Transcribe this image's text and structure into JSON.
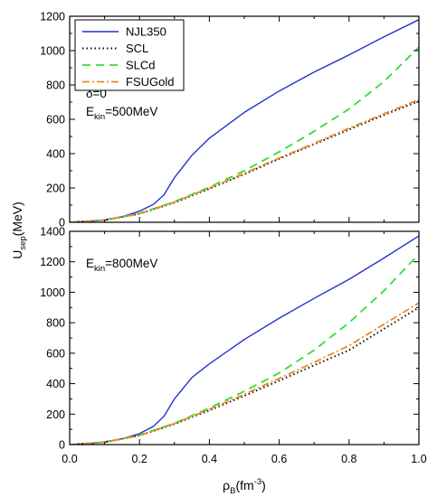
{
  "chart_data": {
    "type": "line",
    "x_label": {
      "main": "ρ",
      "sub": "B",
      "unit_pre": "(fm",
      "unit_sup": "-3",
      "unit_post": ")"
    },
    "y_label": {
      "main": "U",
      "sub": "sep",
      "unit": "(MeV)"
    },
    "x_ticks": [
      "0.0",
      "0.2",
      "0.4",
      "0.6",
      "0.8",
      "1.0"
    ],
    "xlim": [
      0,
      1.0
    ],
    "colors": {
      "NJL350": "#2233cc",
      "SCL": "#111111",
      "SLCd": "#33dd33",
      "FSUGold": "#ee8822"
    },
    "legend": [
      "NJL350",
      "SCL",
      "SLCd",
      "FSUGold"
    ],
    "panels": [
      {
        "ylim": [
          0,
          1200
        ],
        "y_ticks": [
          "0",
          "200",
          "400",
          "600",
          "800",
          "1000",
          "1200"
        ],
        "annotations": [
          {
            "main": "δ=0"
          },
          {
            "main": "E",
            "sub": "kin",
            "rest": "=500MeV"
          }
        ],
        "series": [
          {
            "name": "NJL350",
            "x": [
              0,
              0.05,
              0.1,
              0.15,
              0.2,
              0.24,
              0.27,
              0.3,
              0.35,
              0.4,
              0.5,
              0.6,
              0.7,
              0.8,
              0.9,
              1.0
            ],
            "y": [
              0,
              4,
              14,
              32,
              65,
              105,
              160,
              260,
              390,
              490,
              640,
              765,
              875,
              975,
              1080,
              1180
            ]
          },
          {
            "name": "SCL",
            "x": [
              0,
              0.1,
              0.2,
              0.3,
              0.4,
              0.5,
              0.6,
              0.7,
              0.8,
              0.9,
              1.0
            ],
            "y": [
              0,
              12,
              50,
              115,
              195,
              280,
              370,
              455,
              540,
              625,
              705
            ]
          },
          {
            "name": "SLCd",
            "x": [
              0,
              0.1,
              0.2,
              0.3,
              0.4,
              0.5,
              0.6,
              0.7,
              0.8,
              0.9,
              1.0
            ],
            "y": [
              0,
              12,
              52,
              120,
              205,
              300,
              410,
              530,
              660,
              820,
              1020
            ]
          },
          {
            "name": "FSUGold",
            "x": [
              0,
              0.1,
              0.2,
              0.3,
              0.4,
              0.5,
              0.6,
              0.7,
              0.8,
              0.9,
              1.0
            ],
            "y": [
              0,
              12,
              50,
              118,
              200,
              285,
              375,
              460,
              548,
              632,
              715
            ]
          }
        ]
      },
      {
        "ylim": [
          0,
          1400
        ],
        "y_ticks": [
          "0",
          "200",
          "400",
          "600",
          "800",
          "1000",
          "1200",
          "1400"
        ],
        "annotations": [
          {
            "main": "E",
            "sub": "kin",
            "rest": "=800MeV"
          }
        ],
        "series": [
          {
            "name": "NJL350",
            "x": [
              0,
              0.05,
              0.1,
              0.15,
              0.2,
              0.24,
              0.27,
              0.3,
              0.35,
              0.4,
              0.5,
              0.6,
              0.7,
              0.8,
              0.9,
              1.0
            ],
            "y": [
              0,
              5,
              18,
              38,
              72,
              120,
              185,
              300,
              440,
              530,
              690,
              830,
              960,
              1085,
              1225,
              1370
            ]
          },
          {
            "name": "SCL",
            "x": [
              0,
              0.1,
              0.2,
              0.3,
              0.4,
              0.5,
              0.6,
              0.7,
              0.8,
              0.9,
              1.0
            ],
            "y": [
              0,
              15,
              60,
              135,
              225,
              320,
              420,
              520,
              620,
              760,
              900
            ]
          },
          {
            "name": "SLCd",
            "x": [
              0,
              0.1,
              0.2,
              0.3,
              0.4,
              0.5,
              0.6,
              0.7,
              0.8,
              0.9,
              1.0
            ],
            "y": [
              0,
              15,
              62,
              140,
              240,
              350,
              470,
              620,
              800,
              1010,
              1250
            ]
          },
          {
            "name": "FSUGold",
            "x": [
              0,
              0.1,
              0.2,
              0.3,
              0.4,
              0.5,
              0.6,
              0.7,
              0.8,
              0.9,
              1.0
            ],
            "y": [
              0,
              15,
              60,
              138,
              232,
              330,
              435,
              540,
              650,
              790,
              930
            ]
          }
        ]
      }
    ]
  }
}
